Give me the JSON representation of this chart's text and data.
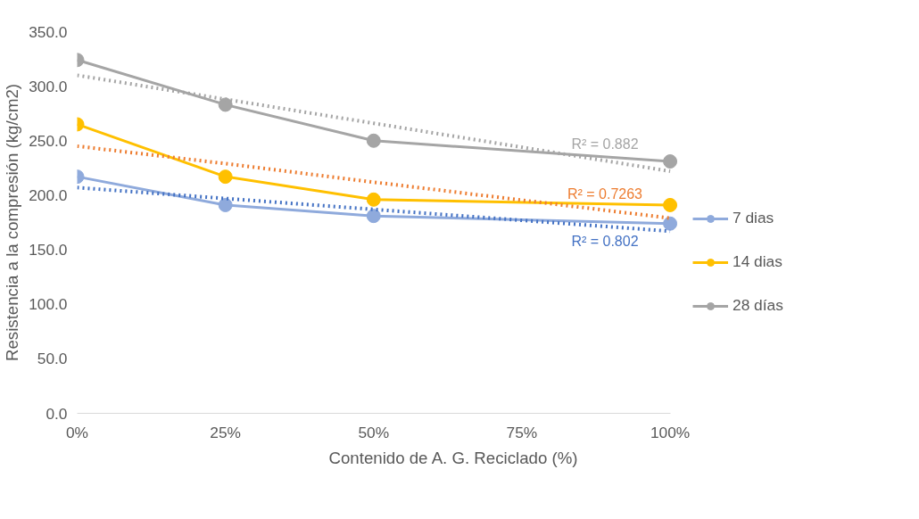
{
  "chart_data": {
    "type": "line",
    "xlabel": "Contenido de A. G. Reciclado (%)",
    "ylabel": "Resistencia a la compresión (kg/cm2)",
    "x": [
      0,
      25,
      50,
      100
    ],
    "series": [
      {
        "name": "7 dias",
        "color": "#8faadc",
        "values": [
          217,
          191,
          181,
          174
        ]
      },
      {
        "name": "14 dias",
        "color": "#ffc000",
        "values": [
          265,
          217,
          196,
          191
        ]
      },
      {
        "name": "28 días",
        "color": "#a5a5a5",
        "values": [
          324,
          283,
          250,
          231
        ]
      },
      {
        "type": "line",
        "color": "#4472c4",
        "values": [
          207,
          197,
          187,
          167
        ],
        "line_style": "dotted",
        "marker": "none"
      },
      {
        "type": "line",
        "color": "#ed7d31",
        "values": [
          245,
          229,
          212,
          179
        ],
        "line_style": "dotted",
        "marker": "none"
      },
      {
        "type": "line",
        "color": "#a5a5a5",
        "values": [
          310,
          288,
          266,
          222
        ],
        "line_style": "dotted",
        "marker": "none"
      }
    ],
    "annotations": [
      "R² = 0.802",
      "R² = 0.7263",
      "R² = 0.882"
    ],
    "xlim": [
      0,
      100
    ],
    "xticks": [
      {
        "value": 0,
        "label": "0%"
      },
      {
        "value": 25,
        "label": "25%"
      },
      {
        "value": 50,
        "label": "50%"
      },
      {
        "value": 75,
        "label": "75%"
      },
      {
        "value": 100,
        "label": "100%"
      }
    ],
    "ylim": [
      0,
      350
    ],
    "yticks": [
      {
        "value": 0,
        "label": "0.0"
      },
      {
        "value": 50,
        "label": "50.0"
      },
      {
        "value": 100,
        "label": "100.0"
      },
      {
        "value": 150,
        "label": "150.0"
      },
      {
        "value": 200,
        "label": "200.0"
      },
      {
        "value": 250,
        "label": "250.0"
      },
      {
        "value": 300,
        "label": "300.0"
      },
      {
        "value": 350,
        "label": "350.0"
      }
    ],
    "marker": "circle",
    "line_style": "solid",
    "grid": false,
    "legend": "right"
  }
}
